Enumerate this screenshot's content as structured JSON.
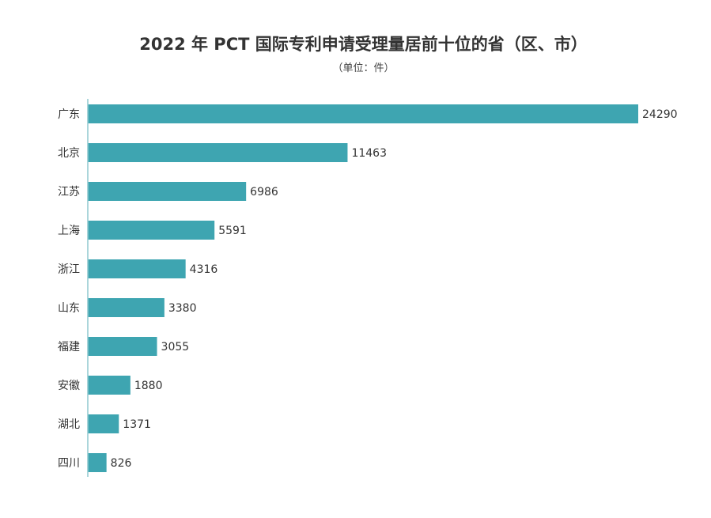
{
  "chart_data": {
    "type": "bar",
    "orientation": "horizontal",
    "title": "2022 年 PCT 国际专利申请受理量居前十位的省（区、市）",
    "subtitle": "（单位：件）",
    "categories": [
      "广东",
      "北京",
      "江苏",
      "上海",
      "浙江",
      "山东",
      "福建",
      "安徽",
      "湖北",
      "四川"
    ],
    "values": [
      24290,
      11463,
      6986,
      5591,
      4316,
      3380,
      3055,
      1880,
      1371,
      826
    ],
    "xlim": [
      0,
      24290
    ],
    "grid": false,
    "data_labels": true,
    "colors": {
      "bar": "#3ea5b1",
      "axis": "#8fc9cf",
      "text": "#333333"
    }
  }
}
